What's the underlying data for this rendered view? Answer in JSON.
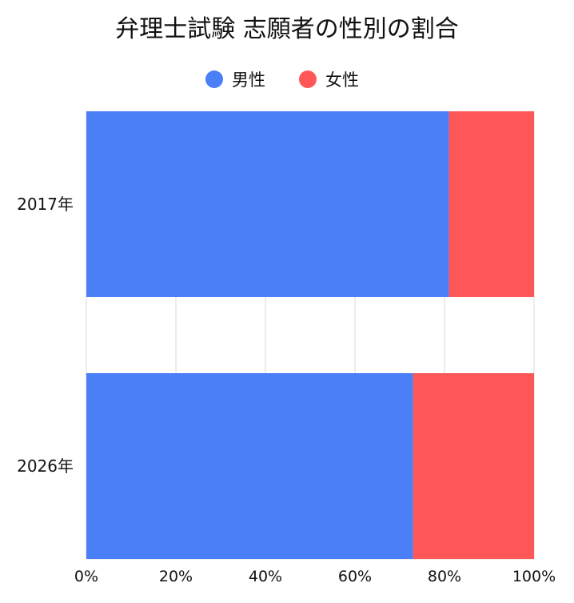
{
  "chart_data": {
    "type": "bar",
    "orientation": "horizontal",
    "stacked": true,
    "normalized": true,
    "title": "弁理士試験 志願者の性別の割合",
    "categories": [
      "2017年",
      "2026年"
    ],
    "series": [
      {
        "name": "男性",
        "color": "#4a7ff7",
        "values": [
          81,
          73
        ]
      },
      {
        "name": "女性",
        "color": "#ff5757",
        "values": [
          19,
          27
        ]
      }
    ],
    "xlim": [
      0,
      100
    ],
    "xticks": [
      0,
      20,
      40,
      60,
      80,
      100
    ],
    "tick_labels": [
      "0%",
      "20%",
      "40%",
      "60%",
      "80%",
      "100%"
    ],
    "grid": true,
    "legend_position": "top-center"
  }
}
